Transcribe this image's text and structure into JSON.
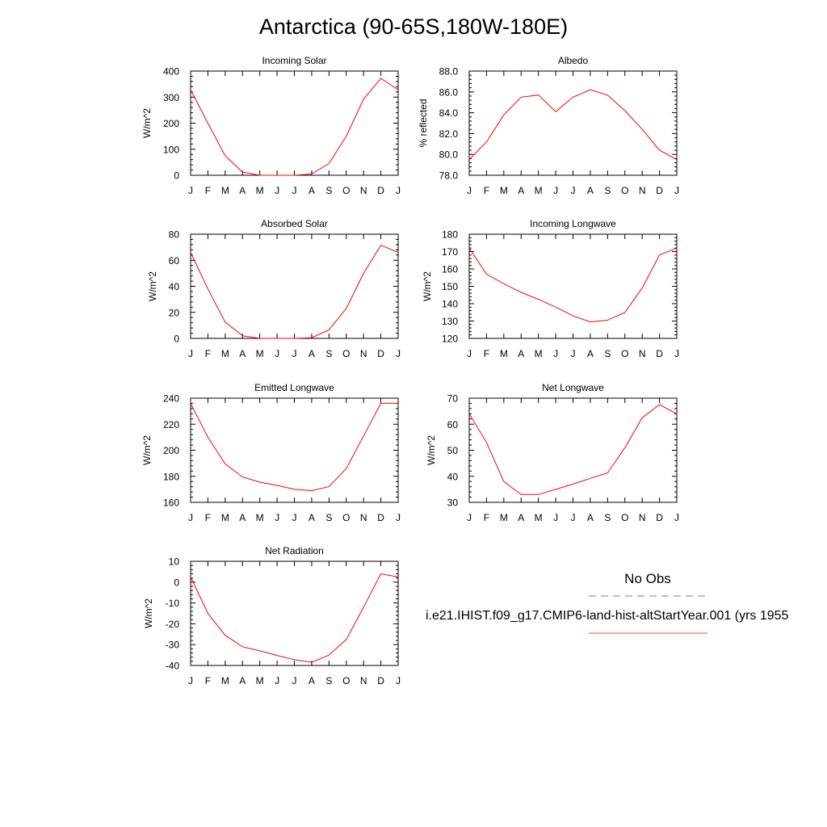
{
  "title": "Antarctica (90-65S,180W-180E)",
  "colors": {
    "model_line": "#ff0000",
    "obs_line": "#0000ff",
    "axis": "#000000"
  },
  "months": [
    "J",
    "F",
    "M",
    "A",
    "M",
    "J",
    "J",
    "A",
    "S",
    "O",
    "N",
    "D",
    "J"
  ],
  "legend": {
    "obs_label": "No Obs",
    "model_label": "i.e21.IHIST.f09_g17.CMIP6-land-hist-altStartYear.001 (yrs 1955"
  },
  "chart_data": [
    {
      "type": "line",
      "title": "Incoming Solar",
      "ylabel": "W/m^2",
      "ylim": [
        0,
        400
      ],
      "yticks": [
        0,
        100,
        200,
        300,
        400
      ],
      "ytick_labels": [
        "0",
        "100",
        "200",
        "300",
        "400"
      ],
      "categories": [
        "J",
        "F",
        "M",
        "A",
        "M",
        "J",
        "J",
        "A",
        "S",
        "O",
        "N",
        "D",
        "J"
      ],
      "series": [
        {
          "values": [
            328,
            200,
            75,
            12,
            0,
            0,
            0,
            5,
            45,
            150,
            292,
            372,
            328
          ]
        }
      ]
    },
    {
      "type": "line",
      "title": "Albedo",
      "ylabel": "% reflected",
      "ylim": [
        78,
        88
      ],
      "yticks": [
        78,
        80,
        82,
        84,
        86,
        88
      ],
      "ytick_labels": [
        "78.0",
        "80.0",
        "82.0",
        "84.0",
        "86.0",
        "88.0"
      ],
      "categories": [
        "J",
        "F",
        "M",
        "A",
        "M",
        "J",
        "J",
        "A",
        "S",
        "O",
        "N",
        "D",
        "J"
      ],
      "series": [
        {
          "values": [
            79.5,
            81.2,
            83.8,
            85.5,
            85.7,
            84.1,
            85.5,
            86.2,
            85.7,
            84.2,
            82.4,
            80.4,
            79.5
          ]
        }
      ]
    },
    {
      "type": "line",
      "title": "Absorbed Solar",
      "ylabel": "W/m^2",
      "ylim": [
        0,
        80
      ],
      "yticks": [
        0,
        20,
        40,
        60,
        80
      ],
      "ytick_labels": [
        "0",
        "20",
        "40",
        "60",
        "80"
      ],
      "categories": [
        "J",
        "F",
        "M",
        "A",
        "M",
        "J",
        "J",
        "A",
        "S",
        "O",
        "N",
        "D",
        "J"
      ],
      "series": [
        {
          "values": [
            66,
            38,
            12.5,
            2,
            0,
            0,
            0,
            0.5,
            6.5,
            23,
            50,
            71.5,
            66
          ]
        }
      ]
    },
    {
      "type": "line",
      "title": "Incoming Longwave",
      "ylabel": "W/m^2",
      "ylim": [
        120,
        180
      ],
      "yticks": [
        120,
        130,
        140,
        150,
        160,
        170,
        180
      ],
      "ytick_labels": [
        "120",
        "130",
        "140",
        "150",
        "160",
        "170",
        "180"
      ],
      "categories": [
        "J",
        "F",
        "M",
        "A",
        "M",
        "J",
        "J",
        "A",
        "S",
        "O",
        "N",
        "D",
        "J"
      ],
      "series": [
        {
          "values": [
            172,
            157,
            151.5,
            146.5,
            142.5,
            138,
            133,
            129.5,
            130.5,
            135,
            149,
            168,
            172
          ]
        }
      ]
    },
    {
      "type": "line",
      "title": "Emitted Longwave",
      "ylabel": "W/m^2",
      "ylim": [
        160,
        240
      ],
      "yticks": [
        160,
        180,
        200,
        220,
        240
      ],
      "ytick_labels": [
        "160",
        "180",
        "200",
        "220",
        "240"
      ],
      "categories": [
        "J",
        "F",
        "M",
        "A",
        "M",
        "J",
        "J",
        "A",
        "S",
        "O",
        "N",
        "D",
        "J"
      ],
      "series": [
        {
          "values": [
            236,
            210,
            189.5,
            179.5,
            175.5,
            173,
            170,
            169,
            172,
            186,
            211,
            236,
            236
          ]
        }
      ]
    },
    {
      "type": "line",
      "title": "Net Longwave",
      "ylabel": "W/m^2",
      "ylim": [
        30,
        70
      ],
      "yticks": [
        30,
        40,
        50,
        60,
        70
      ],
      "ytick_labels": [
        "30",
        "40",
        "50",
        "60",
        "70"
      ],
      "categories": [
        "J",
        "F",
        "M",
        "A",
        "M",
        "J",
        "J",
        "A",
        "S",
        "O",
        "N",
        "D",
        "J"
      ],
      "series": [
        {
          "values": [
            64,
            53,
            38,
            33,
            33,
            35,
            37,
            39.2,
            41.3,
            51,
            62.5,
            67.5,
            64
          ]
        }
      ]
    },
    {
      "type": "line",
      "title": "Net Radiation",
      "ylabel": "W/m^2",
      "ylim": [
        -40,
        10
      ],
      "yticks": [
        -40,
        -30,
        -20,
        -10,
        0,
        10
      ],
      "ytick_labels": [
        "-40",
        "-30",
        "-20",
        "-10",
        "0",
        "10"
      ],
      "categories": [
        "J",
        "F",
        "M",
        "A",
        "M",
        "J",
        "J",
        "A",
        "S",
        "O",
        "N",
        "D",
        "J"
      ],
      "series": [
        {
          "values": [
            2.5,
            -15,
            -25.5,
            -31,
            -33,
            -35.2,
            -37.2,
            -38.5,
            -35,
            -27.5,
            -12,
            4,
            2.5
          ]
        }
      ]
    }
  ]
}
